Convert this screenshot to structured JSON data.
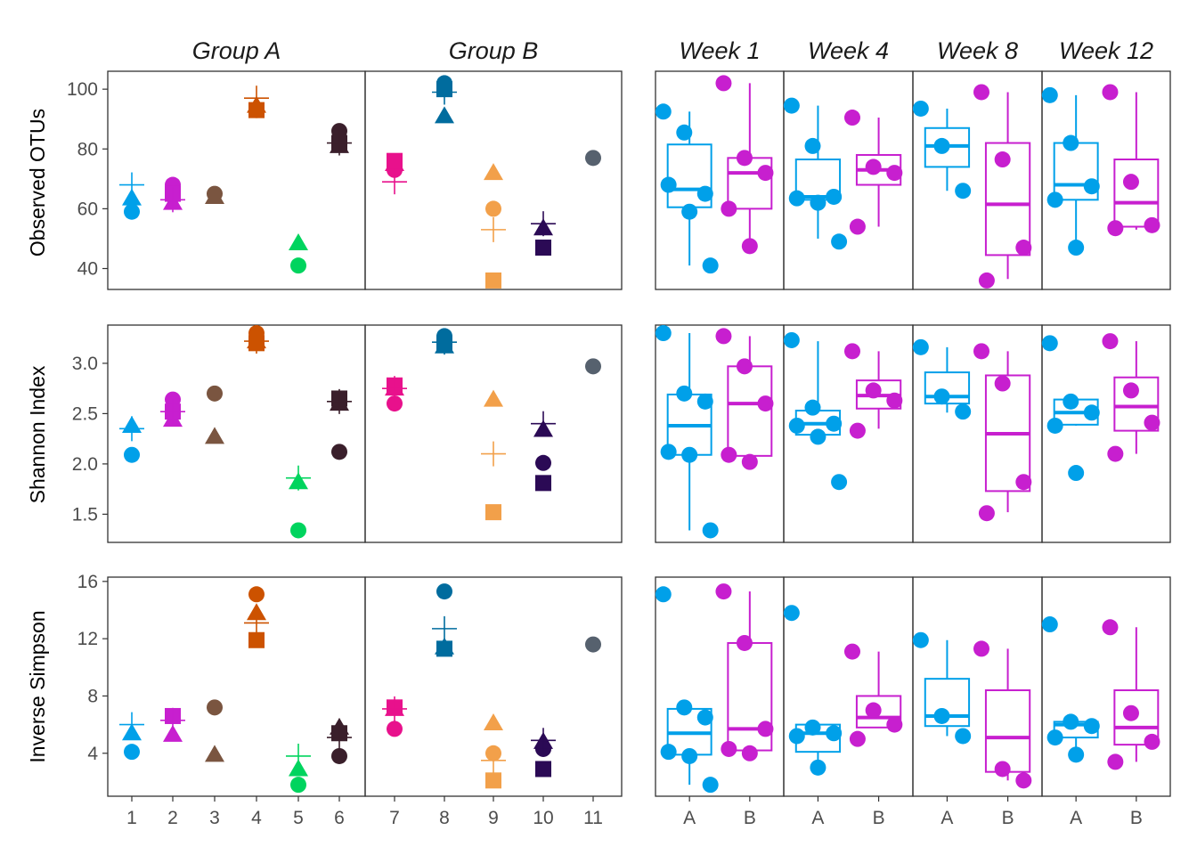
{
  "colors": {
    "1": "#00A0E9",
    "2": "#C71FCF",
    "3": "#7A5540",
    "4": "#CC5200",
    "5": "#00D45E",
    "6": "#3A1F2B",
    "7": "#E8118C",
    "8": "#006C9E",
    "9": "#F2A04A",
    "10": "#2B0A55",
    "11": "#56616E",
    "A": "#00A0E9",
    "B": "#C71FCF"
  },
  "shape_legend_note": "",
  "chart_data": [
    {
      "type": "scatter",
      "title": "",
      "facets": [
        "Group A",
        "Group B"
      ],
      "facet_categories": [
        [
          "1",
          "2",
          "3",
          "4",
          "5",
          "6"
        ],
        [
          "7",
          "8",
          "9",
          "10",
          "11"
        ]
      ],
      "rows": [
        {
          "ylabel": "Observed OTUs",
          "ylim": [
            33,
            106
          ],
          "yticks": [
            "40",
            "60",
            "80",
            "100"
          ],
          "yticks_values": [
            40,
            60,
            80,
            100
          ],
          "points": [
            {
              "x": "1",
              "circle": 59,
              "triangle": 63.5,
              "square": null,
              "plus": 68
            },
            {
              "x": "2",
              "circle": 68,
              "triangle": 62,
              "square": 65,
              "plus": 63
            },
            {
              "x": "3",
              "circle": 65,
              "triangle": 64,
              "square": null,
              "plus": null
            },
            {
              "x": "4",
              "circle": 93,
              "triangle": 94.5,
              "square": 93,
              "plus": 97
            },
            {
              "x": "5",
              "circle": 41,
              "triangle": 48.5,
              "square": null,
              "plus": null
            },
            {
              "x": "6",
              "circle": 86,
              "triangle": 81,
              "square": 82,
              "plus": 82
            },
            {
              "x": "7",
              "circle": 73,
              "triangle": 75,
              "square": 76,
              "plus": 69
            },
            {
              "x": "8",
              "circle": 102,
              "triangle": 91,
              "square": 100,
              "plus": 99
            },
            {
              "x": "9",
              "circle": 60,
              "triangle": 72,
              "square": 36,
              "plus": 53
            },
            {
              "x": "10",
              "circle": null,
              "triangle": 53.5,
              "square": 47,
              "plus": 55
            },
            {
              "x": "11",
              "circle": 77,
              "triangle": null,
              "square": null,
              "plus": null
            }
          ]
        },
        {
          "ylabel": "Shannon Index",
          "ylim": [
            1.22,
            3.38
          ],
          "yticks": [
            "1.5",
            "2.0",
            "2.5",
            "3.0"
          ],
          "yticks_values": [
            1.5,
            2.0,
            2.5,
            3.0
          ],
          "points": [
            {
              "x": "1",
              "circle": 2.09,
              "triangle": 2.38,
              "square": null,
              "plus": 2.35
            },
            {
              "x": "2",
              "circle": 2.64,
              "triangle": 2.44,
              "square": 2.52,
              "plus": 2.52
            },
            {
              "x": "3",
              "circle": 2.7,
              "triangle": 2.27,
              "square": null,
              "plus": null
            },
            {
              "x": "4",
              "circle": 3.3,
              "triangle": 3.22,
              "square": 3.2,
              "plus": 3.22
            },
            {
              "x": "5",
              "circle": 1.34,
              "triangle": 1.82,
              "square": null,
              "plus": 1.86
            },
            {
              "x": "6",
              "circle": 2.12,
              "triangle": 2.6,
              "square": 2.65,
              "plus": 2.62
            },
            {
              "x": "7",
              "circle": 2.6,
              "triangle": 2.75,
              "square": 2.78,
              "plus": 2.75
            },
            {
              "x": "8",
              "circle": 3.27,
              "triangle": 3.17,
              "square": 3.2,
              "plus": 3.21
            },
            {
              "x": "9",
              "circle": null,
              "triangle": 2.64,
              "square": 1.52,
              "plus": 2.1
            },
            {
              "x": "10",
              "circle": 2.01,
              "triangle": 2.34,
              "square": 1.81,
              "plus": 2.4
            },
            {
              "x": "11",
              "circle": 2.97,
              "triangle": null,
              "square": null,
              "plus": null
            }
          ]
        },
        {
          "ylabel": "Inverse Simpson",
          "ylim": [
            1.0,
            16.3
          ],
          "yticks": [
            "4",
            "8",
            "12",
            "16"
          ],
          "yticks_values": [
            4,
            8,
            12,
            16
          ],
          "points": [
            {
              "x": "1",
              "circle": 4.1,
              "triangle": 5.4,
              "square": null,
              "plus": 6.0
            },
            {
              "x": "2",
              "circle": null,
              "triangle": 5.3,
              "square": 6.6,
              "plus": 6.3
            },
            {
              "x": "3",
              "circle": 7.2,
              "triangle": 3.9,
              "square": null,
              "plus": null
            },
            {
              "x": "4",
              "circle": 15.1,
              "triangle": 13.8,
              "square": 11.9,
              "plus": 13.1
            },
            {
              "x": "5",
              "circle": 1.8,
              "triangle": 2.9,
              "square": null,
              "plus": 3.8
            },
            {
              "x": "6",
              "circle": 3.8,
              "triangle": 5.8,
              "square": 5.4,
              "plus": 5.1
            },
            {
              "x": "7",
              "circle": 5.7,
              "triangle": 7.1,
              "square": 7.2,
              "plus": 7.1
            },
            {
              "x": "8",
              "circle": 15.3,
              "triangle": 11.4,
              "square": 11.3,
              "plus": 12.7
            },
            {
              "x": "9",
              "circle": 4.0,
              "triangle": 6.1,
              "square": 2.1,
              "plus": 3.5
            },
            {
              "x": "10",
              "circle": 4.3,
              "triangle": 4.8,
              "square": 2.9,
              "plus": 4.9
            },
            {
              "x": "11",
              "circle": 11.6,
              "triangle": null,
              "square": null,
              "plus": null
            }
          ]
        }
      ]
    },
    {
      "type": "box",
      "title": "",
      "facets": [
        "Week 1",
        "Week 4",
        "Week 8",
        "Week 12"
      ],
      "categories": [
        "A",
        "B"
      ],
      "rows": [
        {
          "ylim": [
            33,
            106
          ],
          "panels": [
            {
              "A": {
                "q1": 60.5,
                "median": 66.5,
                "q3": 81.5,
                "lo": 41,
                "hi": 92.5,
                "pts": [
                  92.5,
                  85.5,
                  65,
                  68,
                  59,
                  41
                ]
              },
              "B": {
                "q1": 60,
                "median": 72,
                "q3": 77,
                "lo": 47.5,
                "hi": 102,
                "pts": [
                  102,
                  77,
                  72,
                  60,
                  47.5
                ]
              }
            },
            {
              "A": {
                "q1": 63,
                "median": 64,
                "q3": 76.5,
                "lo": 50,
                "hi": 94.5,
                "pts": [
                  94.5,
                  81,
                  64,
                  63.5,
                  62,
                  49
                ]
              },
              "B": {
                "q1": 68,
                "median": 73,
                "q3": 78,
                "lo": 54,
                "hi": 90.5,
                "pts": [
                  90.5,
                  74,
                  72,
                  54
                ]
              }
            },
            {
              "A": {
                "q1": 74,
                "median": 81,
                "q3": 87,
                "lo": 66,
                "hi": 93.5,
                "pts": [
                  93.5,
                  81,
                  66
                ]
              },
              "B": {
                "q1": 44.5,
                "median": 61.5,
                "q3": 82,
                "lo": 36.5,
                "hi": 99,
                "pts": [
                  99,
                  76.5,
                  47,
                  36
                ]
              }
            },
            {
              "A": {
                "q1": 63,
                "median": 68,
                "q3": 82,
                "lo": 47,
                "hi": 98,
                "pts": [
                  98,
                  82,
                  67.5,
                  63,
                  47
                ]
              },
              "B": {
                "q1": 54,
                "median": 62,
                "q3": 76.5,
                "lo": 53,
                "hi": 99,
                "pts": [
                  99,
                  69,
                  54.5,
                  53.5
                ]
              }
            }
          ]
        },
        {
          "ylim": [
            1.22,
            3.38
          ],
          "panels": [
            {
              "A": {
                "q1": 2.09,
                "median": 2.38,
                "q3": 2.69,
                "lo": 1.34,
                "hi": 3.3,
                "pts": [
                  3.3,
                  2.7,
                  2.62,
                  2.12,
                  2.09,
                  1.34
                ]
              },
              "B": {
                "q1": 2.08,
                "median": 2.6,
                "q3": 2.97,
                "lo": 2.08,
                "hi": 3.27,
                "pts": [
                  3.27,
                  2.97,
                  2.6,
                  2.09,
                  2.02
                ]
              }
            },
            {
              "A": {
                "q1": 2.29,
                "median": 2.4,
                "q3": 2.53,
                "lo": 2.2,
                "hi": 3.22,
                "pts": [
                  3.23,
                  2.56,
                  2.4,
                  2.38,
                  2.27,
                  1.82
                ]
              },
              "B": {
                "q1": 2.55,
                "median": 2.68,
                "q3": 2.83,
                "lo": 2.35,
                "hi": 3.12,
                "pts": [
                  3.12,
                  2.73,
                  2.63,
                  2.33
                ]
              }
            },
            {
              "A": {
                "q1": 2.6,
                "median": 2.67,
                "q3": 2.91,
                "lo": 2.51,
                "hi": 3.16,
                "pts": [
                  3.16,
                  2.67,
                  2.52
                ]
              },
              "B": {
                "q1": 1.73,
                "median": 2.3,
                "q3": 2.88,
                "lo": 1.52,
                "hi": 3.12,
                "pts": [
                  3.12,
                  2.8,
                  1.82,
                  1.51
                ]
              }
            },
            {
              "A": {
                "q1": 2.39,
                "median": 2.51,
                "q3": 2.64,
                "lo": 2.38,
                "hi": 2.64,
                "pts": [
                  3.2,
                  2.62,
                  2.51,
                  2.38,
                  1.91
                ]
              },
              "B": {
                "q1": 2.33,
                "median": 2.57,
                "q3": 2.86,
                "lo": 2.1,
                "hi": 3.22,
                "pts": [
                  3.22,
                  2.73,
                  2.41,
                  2.1
                ]
              }
            }
          ]
        },
        {
          "ylim": [
            1.0,
            16.3
          ],
          "panels": [
            {
              "A": {
                "q1": 3.9,
                "median": 5.4,
                "q3": 7.1,
                "lo": 1.8,
                "hi": 7.2,
                "pts": [
                  15.1,
                  7.2,
                  6.5,
                  4.1,
                  3.8,
                  1.8
                ]
              },
              "B": {
                "q1": 4.2,
                "median": 5.7,
                "q3": 11.7,
                "lo": 4.0,
                "hi": 15.3,
                "pts": [
                  15.3,
                  11.7,
                  5.7,
                  4.3,
                  4.0
                ]
              }
            },
            {
              "A": {
                "q1": 4.1,
                "median": 5.4,
                "q3": 6.0,
                "lo": 3.0,
                "hi": 6.0,
                "pts": [
                  13.8,
                  5.8,
                  5.4,
                  5.2,
                  3.0
                ]
              },
              "B": {
                "q1": 5.8,
                "median": 6.5,
                "q3": 8.0,
                "lo": 5.8,
                "hi": 11.1,
                "pts": [
                  11.1,
                  7.0,
                  6.0,
                  5.0
                ]
              }
            },
            {
              "A": {
                "q1": 5.9,
                "median": 6.6,
                "q3": 9.2,
                "lo": 5.2,
                "hi": 11.9,
                "pts": [
                  11.9,
                  6.6,
                  5.2
                ]
              },
              "B": {
                "q1": 2.7,
                "median": 5.1,
                "q3": 8.4,
                "lo": 2.1,
                "hi": 11.3,
                "pts": [
                  11.3,
                  2.9,
                  2.1
                ]
              }
            },
            {
              "A": {
                "q1": 5.1,
                "median": 6.0,
                "q3": 6.2,
                "lo": 3.9,
                "hi": 6.2,
                "pts": [
                  13.0,
                  6.2,
                  5.9,
                  5.1,
                  3.9
                ]
              },
              "B": {
                "q1": 4.6,
                "median": 5.8,
                "q3": 8.4,
                "lo": 3.4,
                "hi": 12.8,
                "pts": [
                  12.8,
                  6.8,
                  4.8,
                  3.4
                ]
              }
            }
          ]
        }
      ]
    }
  ]
}
